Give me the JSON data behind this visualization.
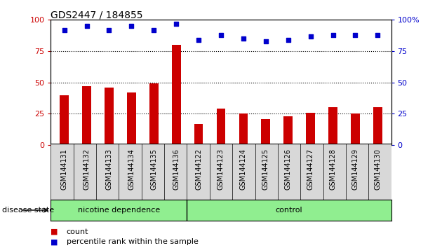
{
  "title": "GDS2447 / 184855",
  "categories": [
    "GSM144131",
    "GSM144132",
    "GSM144133",
    "GSM144134",
    "GSM144135",
    "GSM144136",
    "GSM144122",
    "GSM144123",
    "GSM144124",
    "GSM144125",
    "GSM144126",
    "GSM144127",
    "GSM144128",
    "GSM144129",
    "GSM144130"
  ],
  "counts": [
    40,
    47,
    46,
    42,
    49,
    80,
    17,
    29,
    25,
    21,
    23,
    26,
    30,
    25,
    30
  ],
  "percentiles": [
    92,
    95,
    92,
    95,
    92,
    97,
    84,
    88,
    85,
    83,
    84,
    87,
    88,
    88,
    88
  ],
  "group1_label": "nicotine dependence",
  "group2_label": "control",
  "group1_count": 6,
  "group2_count": 9,
  "bar_color": "#cc0000",
  "dot_color": "#0000cc",
  "ylim": [
    0,
    100
  ],
  "yticks": [
    0,
    25,
    50,
    75,
    100
  ],
  "legend_count_label": "count",
  "legend_percentile_label": "percentile rank within the sample",
  "group_label": "disease state",
  "group_color": "#90ee90",
  "tickbg_color": "#d8d8d8",
  "plot_bg": "#ffffff",
  "tick_color_left": "#cc0000",
  "tick_color_right": "#0000cc",
  "bar_width": 0.4,
  "dot_size": 18
}
